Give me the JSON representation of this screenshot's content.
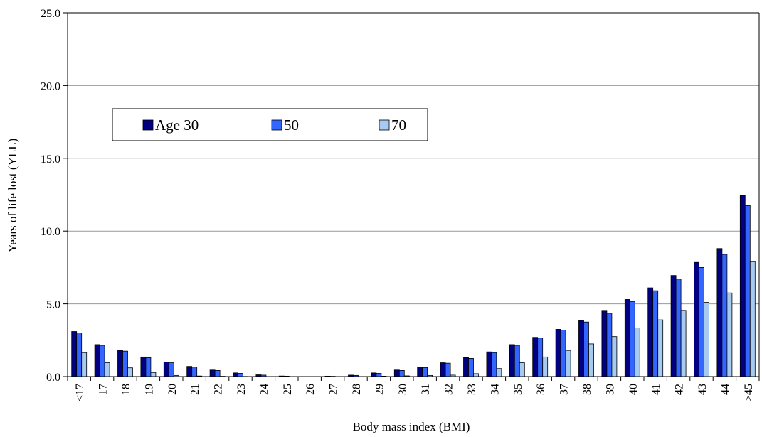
{
  "chart_data": {
    "type": "bar",
    "xlabel": "Body mass index (BMI)",
    "ylabel": "Years of life lost (YLL)",
    "ylim": [
      0,
      25
    ],
    "yticks": [
      "0.0",
      "5.0",
      "10.0",
      "15.0",
      "20.0",
      "25.0"
    ],
    "grid": true,
    "legend_position": "upper-left",
    "categories": [
      "<17",
      "17",
      "18",
      "19",
      "20",
      "21",
      "22",
      "23",
      "24",
      "25",
      "26",
      "27",
      "28",
      "29",
      "30",
      "31",
      "32",
      "33",
      "34",
      "35",
      "36",
      "37",
      "38",
      "39",
      "40",
      "41",
      "42",
      "43",
      "44",
      ">45"
    ],
    "series": [
      {
        "name": "Age 30",
        "color": "#000080",
        "values": [
          3.1,
          2.2,
          1.8,
          1.35,
          1.0,
          0.7,
          0.45,
          0.25,
          0.12,
          0.04,
          0.0,
          0.03,
          0.1,
          0.25,
          0.45,
          0.65,
          0.95,
          1.3,
          1.7,
          2.2,
          2.7,
          3.25,
          3.85,
          4.55,
          5.3,
          6.1,
          6.95,
          7.85,
          8.8,
          12.45
        ]
      },
      {
        "name": "50",
        "color": "#3366ff",
        "values": [
          3.0,
          2.15,
          1.75,
          1.3,
          0.95,
          0.65,
          0.42,
          0.22,
          0.1,
          0.03,
          0.0,
          0.02,
          0.08,
          0.22,
          0.42,
          0.62,
          0.92,
          1.25,
          1.65,
          2.15,
          2.65,
          3.2,
          3.75,
          4.35,
          5.15,
          5.9,
          6.7,
          7.5,
          8.4,
          11.75
        ]
      },
      {
        "name": "70",
        "color": "#a6caf0",
        "values": [
          1.65,
          0.95,
          0.6,
          0.28,
          0.08,
          0.04,
          0.02,
          0.01,
          0.0,
          0.0,
          0.0,
          0.0,
          0.0,
          0.03,
          0.05,
          0.08,
          0.1,
          0.2,
          0.55,
          0.95,
          1.35,
          1.8,
          2.25,
          2.75,
          3.35,
          3.9,
          4.55,
          5.1,
          5.75,
          7.9
        ]
      }
    ]
  }
}
